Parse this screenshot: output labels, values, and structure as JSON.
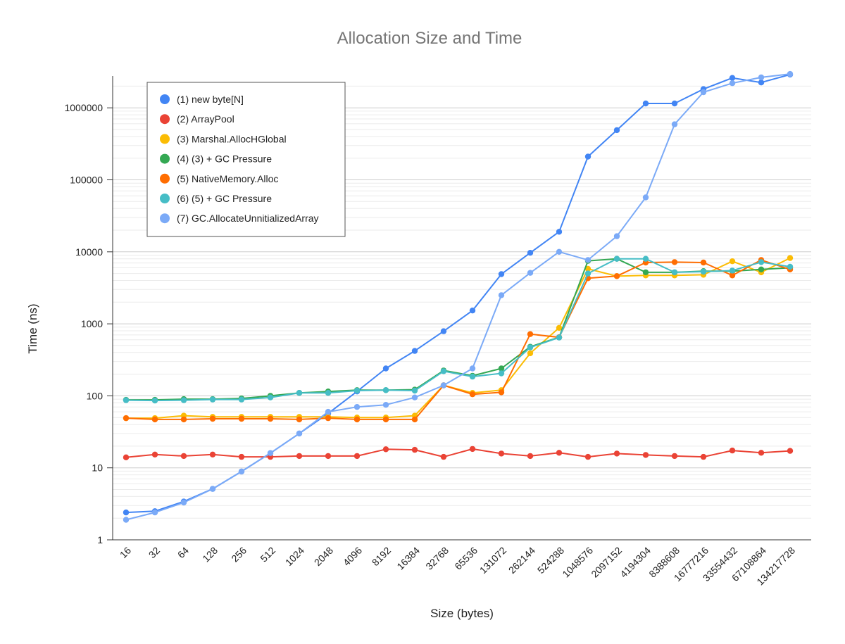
{
  "chart_data": {
    "type": "line",
    "title": "Allocation Size and Time",
    "xlabel": "Size (bytes)",
    "ylabel": "Time (ns)",
    "y_scale": "log",
    "ylim": [
      1,
      3000000
    ],
    "y_ticks": [
      "1",
      "10",
      "100",
      "1000",
      "10000",
      "100000",
      "1000000"
    ],
    "grid": true,
    "legend_position": "top-left",
    "categories": [
      "16",
      "32",
      "64",
      "128",
      "256",
      "512",
      "1024",
      "2048",
      "4096",
      "8192",
      "16384",
      "32768",
      "65536",
      "131072",
      "262144",
      "524288",
      "1048576",
      "2097152",
      "4194304",
      "8388608",
      "16777216",
      "33554432",
      "67108864",
      "134217728"
    ],
    "series": [
      {
        "name": "(1) new byte[N]",
        "color": "#4285F4",
        "values": [
          2.4,
          2.5,
          3.4,
          5.1,
          8.9,
          16,
          30,
          57,
          115,
          240,
          420,
          790,
          1530,
          4900,
          9700,
          19000,
          210000,
          490000,
          1150000,
          1150000,
          1820000,
          2600000,
          2250000,
          2900000
        ]
      },
      {
        "name": "(2) ArrayPool",
        "color": "#EA4335",
        "values": [
          14,
          15.3,
          14.6,
          15.3,
          14.2,
          14.2,
          14.6,
          14.6,
          14.6,
          18.1,
          17.8,
          14.2,
          18.3,
          15.8,
          14.6,
          16.2,
          14.2,
          15.8,
          15.1,
          14.6,
          14.2,
          17.4,
          16.2,
          17.2
        ]
      },
      {
        "name": "(3) Marshal.AllocHGlobal",
        "color": "#FBBC04",
        "values": [
          49,
          49,
          53,
          51,
          51,
          51,
          51,
          51,
          50,
          50,
          53,
          140,
          110,
          120,
          390,
          880,
          5800,
          4600,
          4700,
          4700,
          4800,
          7400,
          5200,
          8200
        ]
      },
      {
        "name": "(4) (3) + GC Pressure",
        "color": "#34A853",
        "values": [
          88,
          88,
          90,
          90,
          92,
          100,
          110,
          115,
          120,
          120,
          122,
          225,
          190,
          240,
          480,
          650,
          7500,
          8000,
          5200,
          5200,
          5400,
          5400,
          5700,
          6000
        ]
      },
      {
        "name": "(5) NativeMemory.Alloc",
        "color": "#FF6D01",
        "values": [
          49,
          47,
          47,
          48,
          48,
          48,
          47,
          49,
          47,
          47,
          47,
          140,
          105,
          112,
          720,
          650,
          4300,
          4600,
          7100,
          7200,
          7100,
          4700,
          7700,
          5700
        ]
      },
      {
        "name": "(6) (5) + GC Pressure",
        "color": "#46BDC6",
        "values": [
          87,
          86,
          87,
          89,
          89,
          95,
          110,
          110,
          118,
          120,
          118,
          220,
          185,
          205,
          470,
          645,
          5000,
          8000,
          8000,
          5200,
          5300,
          5500,
          7200,
          6200
        ]
      },
      {
        "name": "(7) GC.AllocateUnnitializedArray",
        "color": "#7BAAF7",
        "values": [
          1.9,
          2.4,
          3.3,
          5.1,
          8.9,
          16,
          30,
          60,
          70,
          75,
          95,
          140,
          240,
          2500,
          5100,
          10000,
          7700,
          16500,
          57000,
          590000,
          1650000,
          2200000,
          2650000,
          2950000
        ]
      }
    ]
  }
}
